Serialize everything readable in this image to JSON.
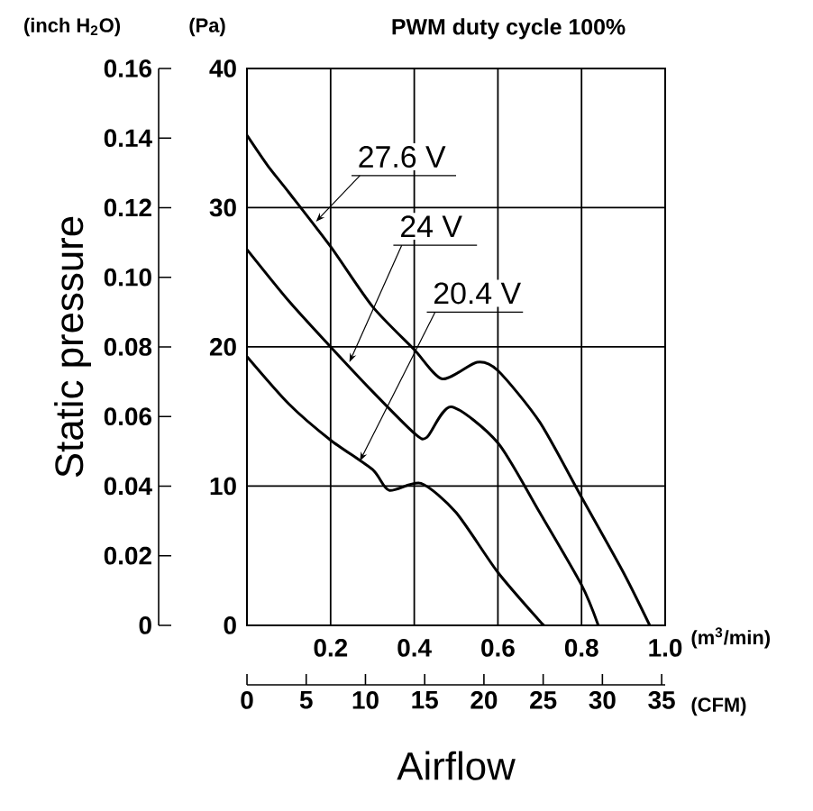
{
  "chart_data": {
    "type": "line",
    "title": "PWM duty cycle 100%",
    "xlabel": "Airflow",
    "ylabel": "Static pressure",
    "annotations": [
      "(inch H$_{2}$O)",
      "(Pa)",
      "(m$^{3}$/min)",
      "(CFM)"
    ],
    "xlim": [
      0,
      1
    ],
    "xticks": [
      {
        "value": 0,
        "label": null
      },
      0.2,
      0.4,
      0.6,
      0.8,
      {
        "value": 1,
        "label": "1.0"
      }
    ],
    "y2lim": [
      0,
      40
    ],
    "y2ticks": [
      0,
      10,
      20,
      30,
      40
    ],
    "ylim": [
      0,
      0.16
    ],
    "yticks": [
      0,
      0.02,
      0.04,
      0.06,
      0.08,
      {
        "value": 0.1,
        "label": "0.10"
      },
      0.12,
      0.14,
      0.16
    ],
    "x2lim": [
      0,
      35.3
    ],
    "x2ticks": [
      0,
      5,
      10,
      15,
      20,
      25,
      30,
      35
    ],
    "grid": true,
    "legend": false,
    "marker": "none",
    "line_style": "solid",
    "series": [
      {
        "name": "27.6 V",
        "color": "#000000",
        "axis": "y2",
        "x": [
          0,
          0.05,
          0.1,
          0.2,
          0.3,
          0.4,
          0.467,
          0.55,
          0.6,
          0.7,
          0.8,
          0.9,
          0.963
        ],
        "values": [
          35.2,
          33.0,
          31.1,
          27.2,
          22.9,
          19.8,
          17.7,
          18.9,
          18.3,
          14.6,
          9.2,
          3.8,
          0
        ]
      },
      {
        "name": "24 V",
        "color": "#000000",
        "axis": "y2",
        "x": [
          0,
          0.1,
          0.2,
          0.3,
          0.4,
          0.43,
          0.488,
          0.6,
          0.7,
          0.8,
          0.84
        ],
        "values": [
          27.0,
          23.3,
          20.0,
          16.8,
          13.8,
          13.5,
          15.7,
          13.1,
          8.1,
          2.9,
          0
        ]
      },
      {
        "name": "20.4 V",
        "color": "#000000",
        "axis": "y2",
        "x": [
          0,
          0.1,
          0.2,
          0.3,
          0.34,
          0.416,
          0.5,
          0.6,
          0.7,
          0.711
        ],
        "values": [
          19.3,
          15.9,
          13.3,
          11.2,
          9.7,
          10.2,
          8.1,
          3.8,
          0.3,
          0
        ]
      }
    ]
  }
}
